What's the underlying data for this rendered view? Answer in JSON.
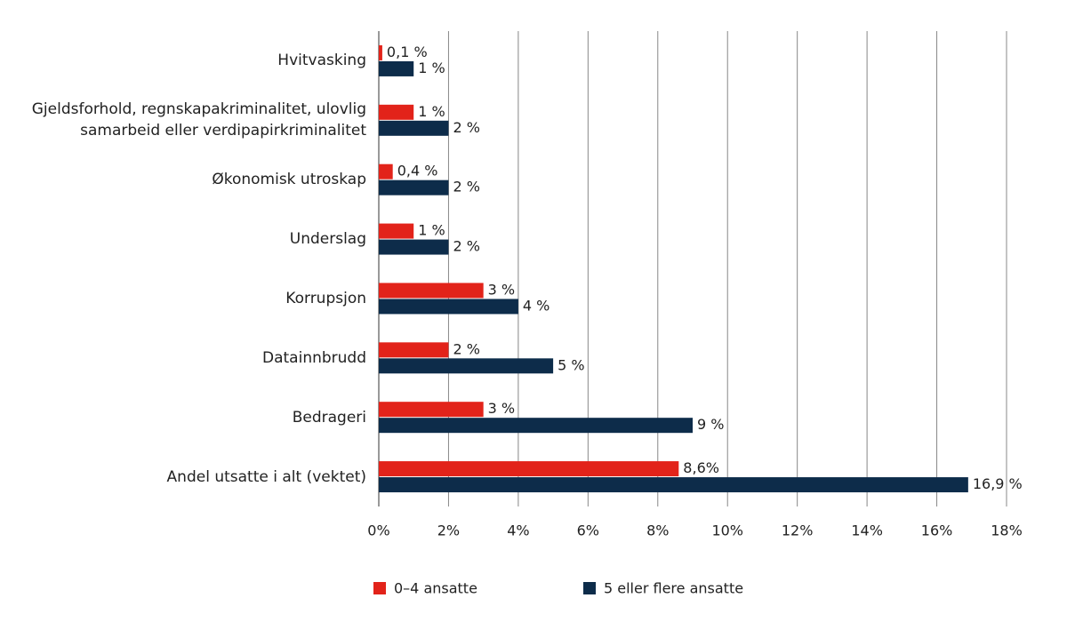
{
  "chart_data": {
    "type": "hbar",
    "categories": [
      "Hvitvasking",
      "Gjeldsforhold, regnskapakriminalitet, ulovlig samarbeid eller verdipapirkriminalitet",
      "Økonomisk utroskap",
      "Underslag",
      "Korrupsjon",
      "Datainnbrudd",
      "Bedrageri",
      "Andel utsatte i alt (vektet)"
    ],
    "series": [
      {
        "name": "0–4 ansatte",
        "color": "#e2231a",
        "values": [
          0.1,
          1,
          0.4,
          1,
          3,
          2,
          3,
          8.6
        ],
        "value_labels": [
          "0,1 %",
          "1 %",
          "0,4 %",
          "1 %",
          "3 %",
          "2 %",
          "3 %",
          "8,6%"
        ]
      },
      {
        "name": "5 eller flere ansatte",
        "color": "#0d2c4a",
        "values": [
          1,
          2,
          2,
          2,
          4,
          5,
          9,
          16.9
        ],
        "value_labels": [
          "1 %",
          "2 %",
          "2 %",
          "2 %",
          "4 %",
          "5 %",
          "9 %",
          "16,9 %"
        ]
      }
    ],
    "xlim": [
      0,
      18
    ],
    "xticks": [
      {
        "value": 0,
        "label": "0%"
      },
      {
        "value": 2,
        "label": "2%"
      },
      {
        "value": 4,
        "label": "4%"
      },
      {
        "value": 6,
        "label": "6%"
      },
      {
        "value": 8,
        "label": "8%"
      },
      {
        "value": 10,
        "label": "10%"
      },
      {
        "value": 12,
        "label": "12%"
      },
      {
        "value": 14,
        "label": "14%"
      },
      {
        "value": 16,
        "label": "16%"
      },
      {
        "value": 18,
        "label": "18%"
      }
    ],
    "grid": true
  }
}
